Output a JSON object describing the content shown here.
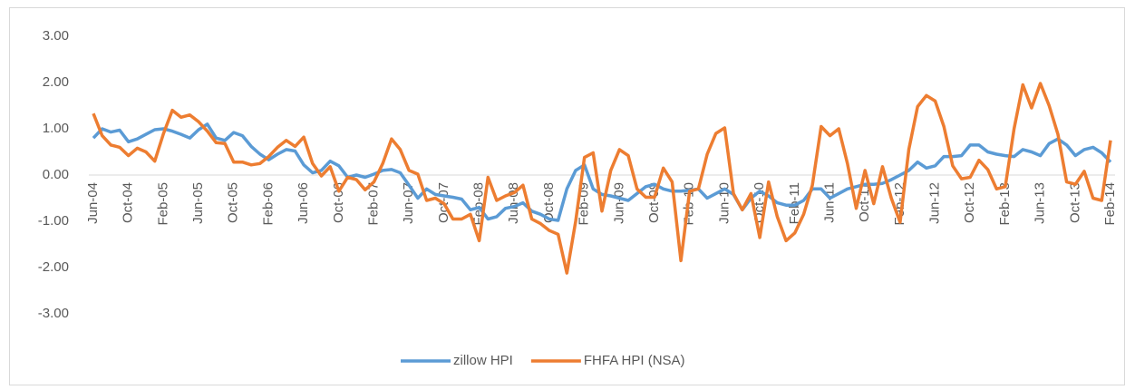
{
  "chart_data": {
    "type": "line",
    "categories": [
      "Jun-04",
      null,
      null,
      null,
      "Oct-04",
      null,
      null,
      null,
      "Feb-05",
      null,
      null,
      null,
      "Jun-05",
      null,
      null,
      null,
      "Oct-05",
      null,
      null,
      null,
      "Feb-06",
      null,
      null,
      null,
      "Jun-06",
      null,
      null,
      null,
      "Oct-06",
      null,
      null,
      null,
      "Feb-07",
      null,
      null,
      null,
      "Jun-07",
      null,
      null,
      null,
      "Oct-07",
      null,
      null,
      null,
      "Feb-08",
      null,
      null,
      null,
      "Jun-08",
      null,
      null,
      null,
      "Oct-08",
      null,
      null,
      null,
      "Feb-09",
      null,
      null,
      null,
      "Jun-09",
      null,
      null,
      null,
      "Oct-09",
      null,
      null,
      null,
      "Feb-10",
      null,
      null,
      null,
      "Jun-10",
      null,
      null,
      null,
      "Oct-10",
      null,
      null,
      null,
      "Feb-11",
      null,
      null,
      null,
      "Jun-11",
      null,
      null,
      null,
      "Oct-11",
      null,
      null,
      null,
      "Feb-12",
      null,
      null,
      null,
      "Jun-12",
      null,
      null,
      null,
      "Oct-12",
      null,
      null,
      null,
      "Feb-13",
      null,
      null,
      null,
      "Jun-13",
      null,
      null,
      null,
      "Oct-13",
      null,
      null,
      null,
      "Feb-14"
    ],
    "series": [
      {
        "name": "zillow HPI",
        "color": "#5b9bd5",
        "values": [
          0.8,
          1.0,
          0.93,
          0.97,
          0.72,
          0.78,
          0.88,
          0.98,
          1.0,
          0.95,
          0.88,
          0.8,
          0.98,
          1.1,
          0.8,
          0.75,
          0.92,
          0.85,
          0.62,
          0.45,
          0.33,
          0.45,
          0.55,
          0.52,
          0.22,
          0.05,
          0.1,
          0.3,
          0.2,
          -0.05,
          0.0,
          -0.05,
          0.02,
          0.1,
          0.12,
          0.05,
          -0.22,
          -0.5,
          -0.3,
          -0.42,
          -0.45,
          -0.48,
          -0.52,
          -0.75,
          -0.7,
          -0.95,
          -0.9,
          -0.72,
          -0.68,
          -0.6,
          -0.78,
          -0.85,
          -0.95,
          -0.98,
          -0.3,
          0.1,
          0.22,
          -0.3,
          -0.42,
          -0.45,
          -0.5,
          -0.55,
          -0.4,
          -0.25,
          -0.2,
          -0.3,
          -0.35,
          -0.35,
          -0.33,
          -0.3,
          -0.5,
          -0.4,
          -0.3,
          -0.42,
          -0.75,
          -0.5,
          -0.35,
          -0.45,
          -0.6,
          -0.65,
          -0.65,
          -0.55,
          -0.3,
          -0.3,
          -0.5,
          -0.4,
          -0.3,
          -0.25,
          -0.2,
          -0.2,
          -0.18,
          -0.1,
          0.0,
          0.1,
          0.28,
          0.15,
          0.2,
          0.4,
          0.4,
          0.42,
          0.65,
          0.65,
          0.5,
          0.45,
          0.42,
          0.4,
          0.55,
          0.5,
          0.42,
          0.68,
          0.78,
          0.65,
          0.42,
          0.55,
          0.6,
          0.48,
          0.28
        ]
      },
      {
        "name": "FHFA HPI (NSA)",
        "color": "#ed7d31",
        "values": [
          1.33,
          0.85,
          0.65,
          0.6,
          0.42,
          0.58,
          0.5,
          0.3,
          0.9,
          1.4,
          1.25,
          1.3,
          1.15,
          0.95,
          0.7,
          0.68,
          0.28,
          0.28,
          0.22,
          0.25,
          0.4,
          0.6,
          0.75,
          0.62,
          0.82,
          0.25,
          -0.02,
          0.18,
          -0.35,
          -0.05,
          -0.1,
          -0.32,
          -0.15,
          0.25,
          0.78,
          0.55,
          0.1,
          0.02,
          -0.55,
          -0.5,
          -0.62,
          -0.95,
          -0.95,
          -0.85,
          -1.42,
          -0.05,
          -0.55,
          -0.45,
          -0.38,
          -0.22,
          -0.95,
          -1.05,
          -1.2,
          -1.28,
          -2.12,
          -1.0,
          0.38,
          0.48,
          -0.78,
          0.1,
          0.55,
          0.42,
          -0.3,
          -0.48,
          -0.48,
          0.15,
          -0.15,
          -1.85,
          -0.35,
          -0.3,
          0.45,
          0.9,
          1.02,
          -0.4,
          -0.75,
          -0.4,
          -1.35,
          -0.15,
          -0.9,
          -1.42,
          -1.25,
          -0.85,
          -0.22,
          1.05,
          0.85,
          1.0,
          0.25,
          -0.72,
          0.1,
          -0.62,
          0.18,
          -0.5,
          -1.02,
          0.55,
          1.48,
          1.72,
          1.6,
          1.05,
          0.2,
          -0.08,
          -0.05,
          0.32,
          0.12,
          -0.3,
          -0.25,
          1.0,
          1.95,
          1.45,
          1.98,
          1.5,
          0.88,
          -0.15,
          -0.2,
          0.08,
          -0.5,
          -0.55,
          0.75
        ]
      }
    ],
    "ylim": [
      -3,
      3
    ],
    "yticks": [
      {
        "value": -3,
        "label": "-3.00"
      },
      {
        "value": -2,
        "label": "-2.00"
      },
      {
        "value": -1,
        "label": "-1.00"
      },
      {
        "value": 0,
        "label": "0.00"
      },
      {
        "value": 1,
        "label": "1.00"
      },
      {
        "value": 2,
        "label": "2.00"
      },
      {
        "value": 3,
        "label": "3.00"
      }
    ],
    "grid": false,
    "legend": "bottom"
  }
}
